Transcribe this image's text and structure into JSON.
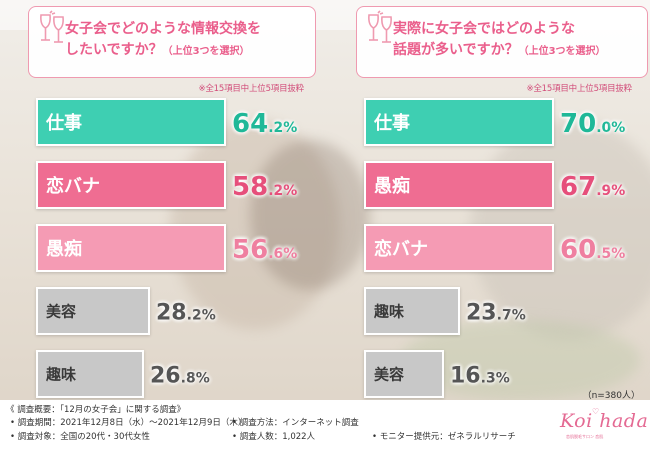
{
  "colors": {
    "teal": "#3ecfb2",
    "pink": "#ef6d92",
    "lightpink": "#f59bb4",
    "gray": "#c8c8c8",
    "question": "#ea5f8c"
  },
  "left_question": {
    "line1": "女子会でどのような情報交換を",
    "line2": "したいですか？",
    "sub": "（上位3つを選択）",
    "icon": "wine-glasses-icon"
  },
  "right_question": {
    "line1": "実際に女子会ではどのような",
    "line2": "話題が多いですか？",
    "sub": "（上位3つを選択）",
    "icon": "wine-glasses-icon"
  },
  "note": "※全15項目中上位5項目抜粋",
  "sample": "（n=380人）",
  "chart_data": [
    {
      "type": "bar",
      "orientation": "horizontal",
      "title": "女子会でどのような情報交換をしたいですか？（上位3つを選択）",
      "unit": "%",
      "categories": [
        "仕事",
        "恋バナ",
        "愚痴",
        "美容",
        "趣味"
      ],
      "values": [
        64.2,
        58.2,
        56.6,
        28.2,
        26.8
      ],
      "value_labels": [
        "64.2",
        "58.2",
        "56.6",
        "28.2",
        "26.8"
      ],
      "bar_colors": [
        "#3ecfb2",
        "#ef6d92",
        "#f59bb4",
        "#c8c8c8",
        "#c8c8c8"
      ],
      "value_colors": [
        "#1fb898",
        "#e64f7b",
        "#ef7fa0",
        "#555555",
        "#555555"
      ]
    },
    {
      "type": "bar",
      "orientation": "horizontal",
      "title": "実際に女子会ではどのような話題が多いですか？（上位3つを選択）",
      "unit": "%",
      "categories": [
        "仕事",
        "愚痴",
        "恋バナ",
        "趣味",
        "美容"
      ],
      "values": [
        70.0,
        67.9,
        60.5,
        23.7,
        16.3
      ],
      "value_labels": [
        "70.0",
        "67.9",
        "60.5",
        "23.7",
        "16.3"
      ],
      "bar_colors": [
        "#3ecfb2",
        "#ef6d92",
        "#f59bb4",
        "#c8c8c8",
        "#c8c8c8"
      ],
      "value_colors": [
        "#1fb898",
        "#e64f7b",
        "#ef7fa0",
        "#555555",
        "#555555"
      ]
    }
  ],
  "footer": {
    "title": "《 調査概要：「12月の女子会」に関する調査》",
    "period": "• 調査期間：2021年12月8日（水）～2021年12月9日（木）",
    "target": "• 調査対象：全国の20代・30代女性",
    "method": "• 調査方法：インターネット調査",
    "count": "• 調査人数：1,022人",
    "monitor": "• モニター提供元：ゼネラルリサーチ"
  },
  "logo": {
    "text": "Koi  hada",
    "sub": "恋肌脱毛サロン 恋肌"
  }
}
